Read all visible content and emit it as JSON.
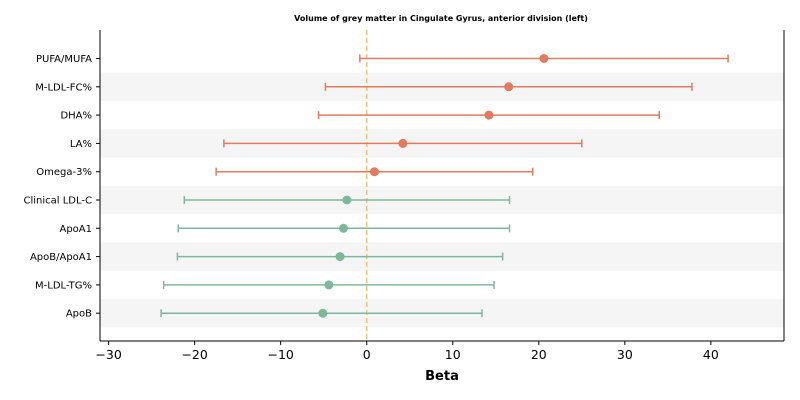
{
  "chart_data": {
    "type": "forest",
    "title": "Volume of grey matter in Cingulate Gyrus, anterior division (left)",
    "xlabel": "Beta",
    "xlim": [
      -31,
      48.5
    ],
    "xticks": [
      -30,
      -20,
      -10,
      0,
      10,
      20,
      30,
      40
    ],
    "xtick_labels": [
      "−30",
      "−20",
      "−10",
      "0",
      "10",
      "20",
      "30",
      "40"
    ],
    "reference_line": 0,
    "rows": [
      {
        "label": "PUFA/MUFA",
        "beta": 20.6,
        "ci_low": -0.8,
        "ci_high": 42.0,
        "group": "positive"
      },
      {
        "label": "M-LDL-FC%",
        "beta": 16.5,
        "ci_low": -4.8,
        "ci_high": 37.8,
        "group": "positive"
      },
      {
        "label": "DHA%",
        "beta": 14.2,
        "ci_low": -5.6,
        "ci_high": 34.0,
        "group": "positive"
      },
      {
        "label": "LA%",
        "beta": 4.2,
        "ci_low": -16.6,
        "ci_high": 25.0,
        "group": "positive"
      },
      {
        "label": "Omega-3%",
        "beta": 0.9,
        "ci_low": -17.5,
        "ci_high": 19.3,
        "group": "positive"
      },
      {
        "label": "Clinical LDL-C",
        "beta": -2.3,
        "ci_low": -21.2,
        "ci_high": 16.6,
        "group": "negative"
      },
      {
        "label": "ApoA1",
        "beta": -2.7,
        "ci_low": -21.9,
        "ci_high": 16.6,
        "group": "negative"
      },
      {
        "label": "ApoB/ApoA1",
        "beta": -3.1,
        "ci_low": -22.0,
        "ci_high": 15.8,
        "group": "negative"
      },
      {
        "label": "M-LDL-TG%",
        "beta": -4.4,
        "ci_low": -23.6,
        "ci_high": 14.8,
        "group": "negative"
      },
      {
        "label": "ApoB",
        "beta": -5.1,
        "ci_low": -23.9,
        "ci_high": 13.4,
        "group": "negative"
      }
    ],
    "colors": {
      "positive": "#e07b5f",
      "negative": "#80b79b",
      "reference_line": "#f2c27c",
      "band": "#f5f5f5"
    },
    "grid": false,
    "legend": "none"
  }
}
